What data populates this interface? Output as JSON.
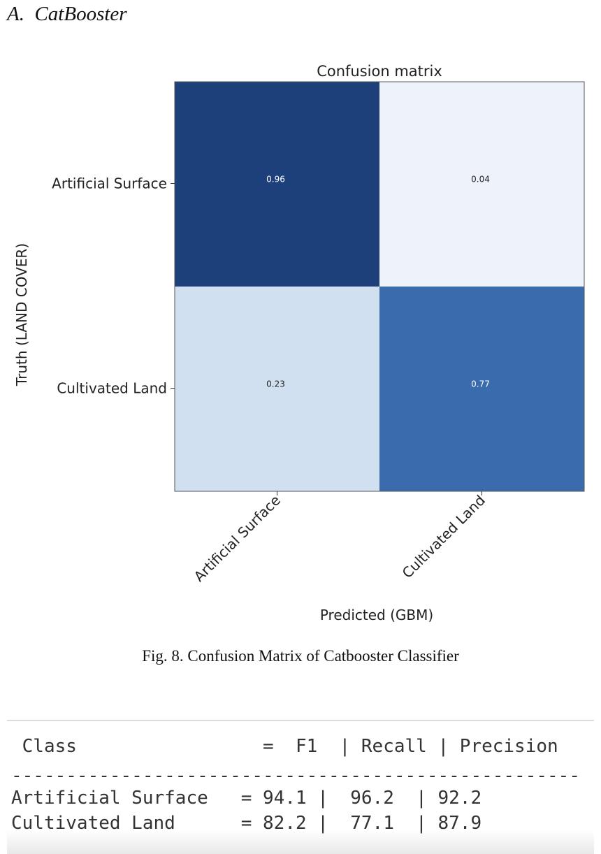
{
  "section_heading": "A.  CatBooster",
  "figure_caption": "Fig. 8.  Confusion Matrix of Catbooster Classifier",
  "chart_data": {
    "type": "heatmap",
    "title": "Confusion matrix",
    "xlabel": "Predicted (GBM)",
    "ylabel": "Truth (LAND COVER)",
    "x_categories": [
      "Artificial Surface",
      "Cultivated Land"
    ],
    "y_categories": [
      "Artificial Surface",
      "Cultivated Land"
    ],
    "values": [
      [
        0.96,
        0.04
      ],
      [
        0.23,
        0.77
      ]
    ],
    "value_labels": [
      [
        "0.96",
        "0.04"
      ],
      [
        "0.23",
        "0.77"
      ]
    ],
    "colormap": "Blues",
    "colorscale": [
      "#eef3fb",
      "#cdddef",
      "#3a6cad",
      "#17366f"
    ]
  },
  "metrics_console": {
    "header_line": " Class                 =  F1  | Recall | Precision",
    "separator_line": "----------------------------------------------------",
    "rows": [
      "Artificial Surface   = 94.1 |  96.2  | 92.2",
      "Cultivated Land      = 82.2 |  77.1  | 87.9"
    ]
  }
}
